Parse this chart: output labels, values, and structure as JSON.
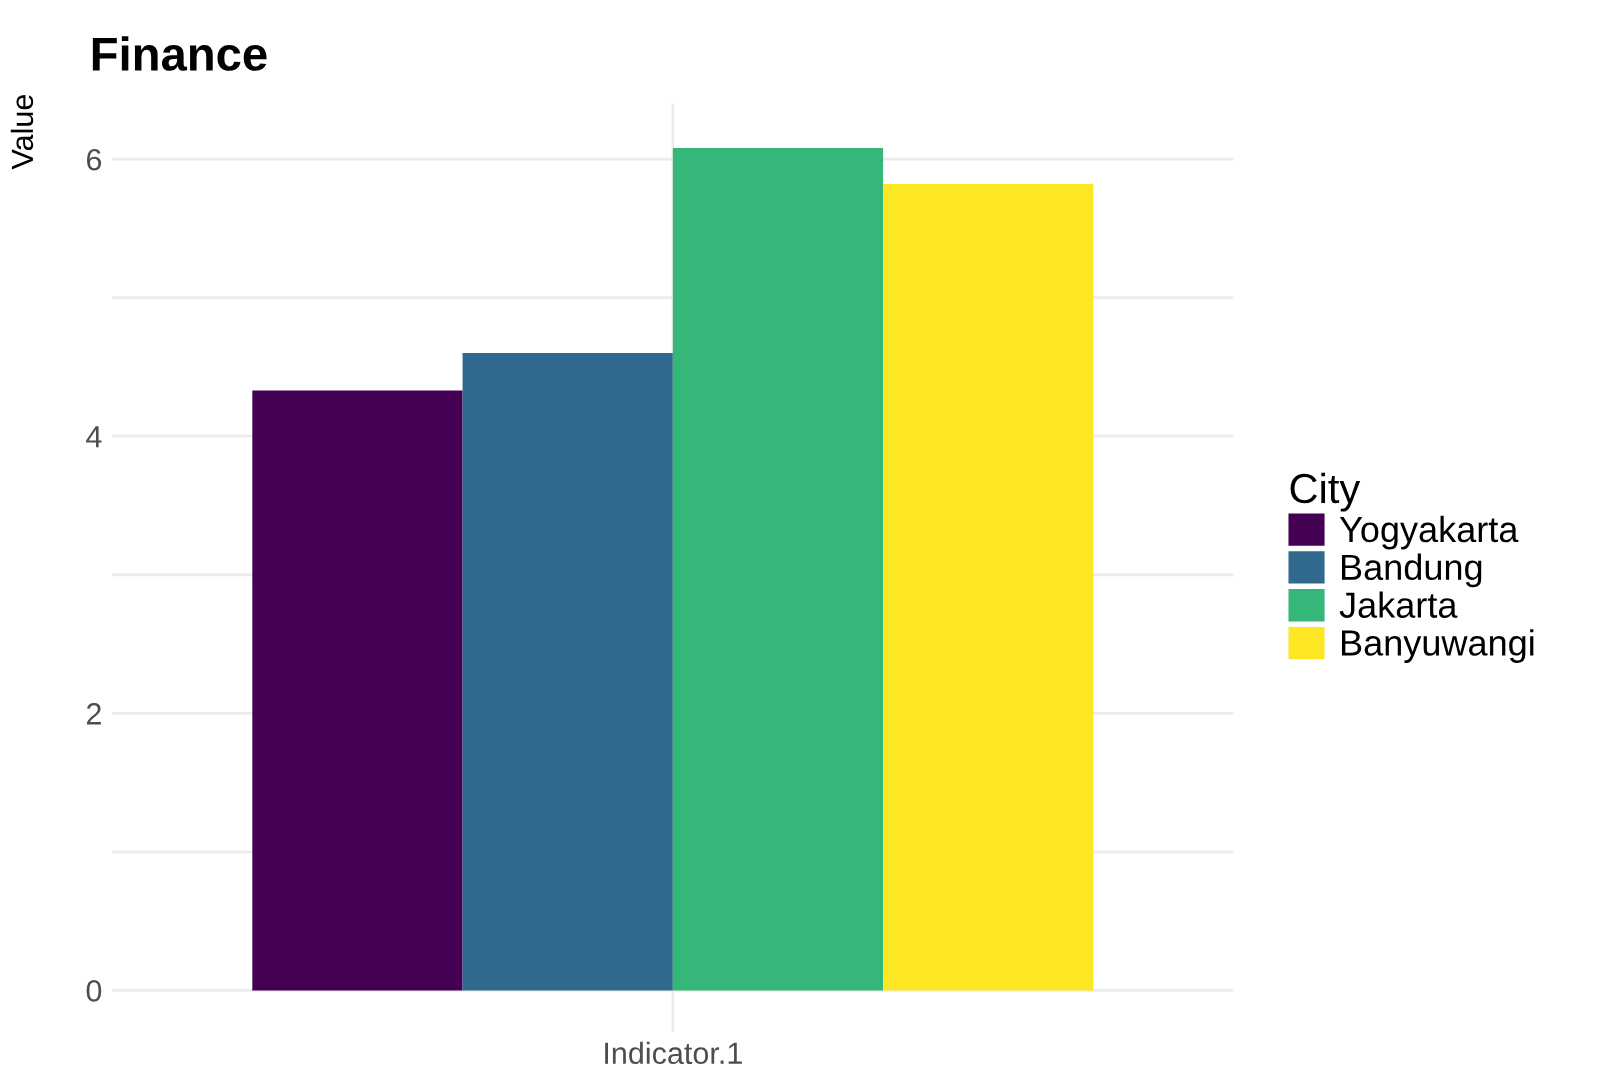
{
  "chart_data": {
    "type": "bar",
    "title": "Finance",
    "ylabel": "Value",
    "legend_title": "City",
    "categories": [
      "Indicator.1"
    ],
    "series": [
      {
        "name": "Yogyakarta",
        "color": "#440154",
        "values": [
          4.33
        ]
      },
      {
        "name": "Bandung",
        "color": "#31688e",
        "values": [
          4.6
        ]
      },
      {
        "name": "Jakarta",
        "color": "#35b779",
        "values": [
          6.08
        ]
      },
      {
        "name": "Banyuwangi",
        "color": "#fde725",
        "values": [
          5.82
        ]
      }
    ],
    "ylim": [
      -0.3,
      6.4
    ],
    "yticks": [
      0,
      {
        "value": 1,
        "label": null
      },
      2,
      {
        "value": 3,
        "label": null
      },
      4,
      {
        "value": 5,
        "label": null
      },
      6
    ],
    "grid": true,
    "legend": "right"
  }
}
